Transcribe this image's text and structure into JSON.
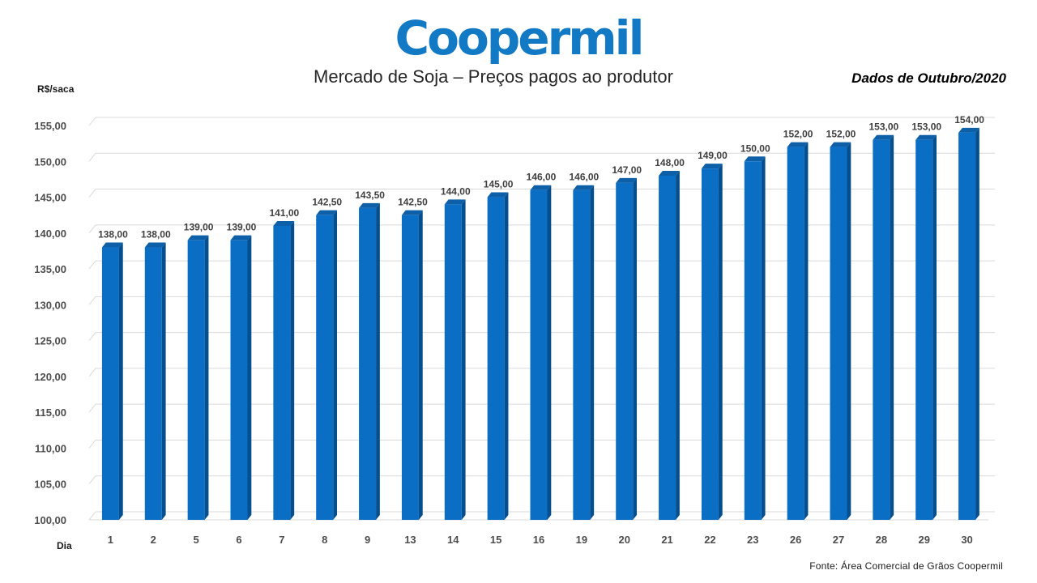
{
  "brand": {
    "logo_text": "Coopermil",
    "logo_color": "#1279c5"
  },
  "header": {
    "title": "Mercado de Soja – Preços pagos ao produtor",
    "period": "Dados de Outubro/2020"
  },
  "footer": {
    "source": "Fonte: Área Comercial de Grãos Coopermil"
  },
  "chart_data": {
    "type": "bar",
    "style": "3d-column",
    "bar_color": "#0a6ec4",
    "ylabel": "R$/saca",
    "xlabel": "Dia",
    "ylim": [
      100,
      155
    ],
    "ytick_step": 5,
    "yticks": [
      "100,00",
      "105,00",
      "110,00",
      "115,00",
      "120,00",
      "125,00",
      "130,00",
      "135,00",
      "140,00",
      "145,00",
      "150,00",
      "155,00"
    ],
    "grid": true,
    "legend": "none",
    "categories": [
      "1",
      "2",
      "5",
      "6",
      "7",
      "8",
      "9",
      "13",
      "14",
      "15",
      "16",
      "19",
      "20",
      "21",
      "22",
      "23",
      "26",
      "27",
      "28",
      "29",
      "30"
    ],
    "values": [
      138.0,
      138.0,
      139.0,
      139.0,
      141.0,
      142.5,
      143.5,
      142.5,
      144.0,
      145.0,
      146.0,
      146.0,
      147.0,
      148.0,
      149.0,
      150.0,
      152.0,
      152.0,
      153.0,
      153.0,
      154.0
    ],
    "value_labels": [
      "138,00",
      "138,00",
      "139,00",
      "139,00",
      "141,00",
      "142,50",
      "143,50",
      "142,50",
      "144,00",
      "145,00",
      "146,00",
      "146,00",
      "147,00",
      "148,00",
      "149,00",
      "150,00",
      "152,00",
      "152,00",
      "153,00",
      "153,00",
      "154,00"
    ]
  }
}
